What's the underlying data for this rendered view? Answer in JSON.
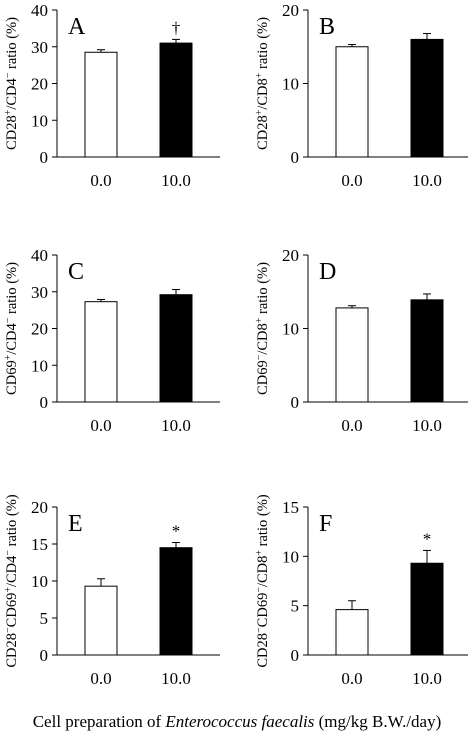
{
  "chart_data": [
    {
      "type": "bar",
      "panel": "A",
      "categories": [
        "0.0",
        "10.0"
      ],
      "values": [
        28.5,
        31.0
      ],
      "errors": [
        0.7,
        1.0
      ],
      "fills": [
        "#ffffff",
        "#000000"
      ],
      "ylabel_parts": [
        [
          "CD28",
          "n"
        ],
        [
          "+",
          "sup"
        ],
        [
          "/CD4",
          "n"
        ],
        [
          "−",
          "sup"
        ],
        [
          " ratio (%)",
          "n"
        ]
      ],
      "ylim": [
        0,
        40
      ],
      "yticks": [
        0,
        10,
        20,
        30,
        40
      ],
      "marks": [
        "",
        "†"
      ]
    },
    {
      "type": "bar",
      "panel": "B",
      "categories": [
        "0.0",
        "10.0"
      ],
      "values": [
        15.0,
        16.0
      ],
      "errors": [
        0.3,
        0.8
      ],
      "fills": [
        "#ffffff",
        "#000000"
      ],
      "ylabel_parts": [
        [
          "CD28",
          "n"
        ],
        [
          "+",
          "sup"
        ],
        [
          "/CD8",
          "n"
        ],
        [
          "+",
          "sup"
        ],
        [
          " ratio (%)",
          "n"
        ]
      ],
      "ylim": [
        0,
        20
      ],
      "yticks": [
        0,
        10,
        20
      ],
      "marks": [
        "",
        ""
      ]
    },
    {
      "type": "bar",
      "panel": "C",
      "categories": [
        "0.0",
        "10.0"
      ],
      "values": [
        27.3,
        29.2
      ],
      "errors": [
        0.6,
        1.4
      ],
      "fills": [
        "#ffffff",
        "#000000"
      ],
      "ylabel_parts": [
        [
          "CD69",
          "n"
        ],
        [
          "+",
          "sup"
        ],
        [
          "/CD4",
          "n"
        ],
        [
          "−",
          "sup"
        ],
        [
          " ratio (%)",
          "n"
        ]
      ],
      "ylim": [
        0,
        40
      ],
      "yticks": [
        0,
        10,
        20,
        30,
        40
      ],
      "marks": [
        "",
        ""
      ]
    },
    {
      "type": "bar",
      "panel": "D",
      "categories": [
        "0.0",
        "10.0"
      ],
      "values": [
        12.8,
        13.9
      ],
      "errors": [
        0.3,
        0.8
      ],
      "fills": [
        "#ffffff",
        "#000000"
      ],
      "ylabel_parts": [
        [
          "CD69",
          "n"
        ],
        [
          "−",
          "sup"
        ],
        [
          "/CD8",
          "n"
        ],
        [
          "+",
          "sup"
        ],
        [
          " ratio (%)",
          "n"
        ]
      ],
      "ylim": [
        0,
        20
      ],
      "yticks": [
        0,
        10,
        20
      ],
      "marks": [
        "",
        ""
      ]
    },
    {
      "type": "bar",
      "panel": "E",
      "categories": [
        "0.0",
        "10.0"
      ],
      "values": [
        9.3,
        14.5
      ],
      "errors": [
        1.0,
        0.7
      ],
      "fills": [
        "#ffffff",
        "#000000"
      ],
      "ylabel_parts": [
        [
          "CD28",
          "n"
        ],
        [
          "−",
          "sup"
        ],
        [
          "CD69",
          "n"
        ],
        [
          "+",
          "sup"
        ],
        [
          "/CD4",
          "n"
        ],
        [
          "−",
          "sup"
        ],
        [
          " ratio (%)",
          "n"
        ]
      ],
      "ylim": [
        0,
        20
      ],
      "yticks": [
        0,
        5,
        10,
        15,
        20
      ],
      "marks": [
        "",
        "*"
      ]
    },
    {
      "type": "bar",
      "panel": "F",
      "categories": [
        "0.0",
        "10.0"
      ],
      "values": [
        4.6,
        9.3
      ],
      "errors": [
        0.9,
        1.3
      ],
      "fills": [
        "#ffffff",
        "#000000"
      ],
      "ylabel_parts": [
        [
          "CD28",
          "n"
        ],
        [
          "−",
          "sup"
        ],
        [
          "CD69",
          "n"
        ],
        [
          "−",
          "sup"
        ],
        [
          "/CD8",
          "n"
        ],
        [
          "+",
          "sup"
        ],
        [
          " ratio (%)",
          "n"
        ]
      ],
      "ylim": [
        0,
        15
      ],
      "yticks": [
        0,
        5,
        10,
        15
      ],
      "marks": [
        "",
        "*"
      ]
    }
  ],
  "footer": {
    "prefix": "Cell preparation of ",
    "species": "Enterococcus faecalis",
    "suffix": " (mg/kg B.W./day)"
  }
}
